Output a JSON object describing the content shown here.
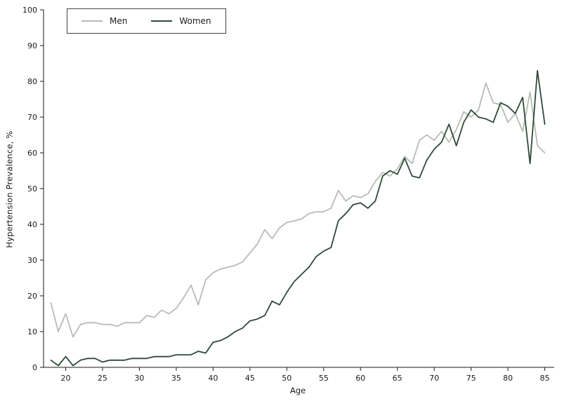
{
  "figure": {
    "xlabel": "Age",
    "ylabel": "Hypertension Prevalence, %"
  },
  "chart_data": {
    "type": "line",
    "title": "",
    "xlabel": "Age",
    "ylabel": "Hypertension Prevalence, %",
    "xlim": [
      17,
      86
    ],
    "ylim": [
      0,
      100
    ],
    "x_ticks": [
      20,
      25,
      30,
      35,
      40,
      45,
      50,
      55,
      60,
      65,
      70,
      75,
      80,
      85
    ],
    "y_ticks": [
      0,
      10,
      20,
      30,
      40,
      50,
      60,
      70,
      80,
      90,
      100
    ],
    "grid": false,
    "legend_position": "top-left",
    "x": [
      18,
      19,
      20,
      21,
      22,
      23,
      24,
      25,
      26,
      27,
      28,
      29,
      30,
      31,
      32,
      33,
      34,
      35,
      36,
      37,
      38,
      39,
      40,
      41,
      42,
      43,
      44,
      45,
      46,
      47,
      48,
      49,
      50,
      51,
      52,
      53,
      54,
      55,
      56,
      57,
      58,
      59,
      60,
      61,
      62,
      63,
      64,
      65,
      66,
      67,
      68,
      69,
      70,
      71,
      72,
      73,
      74,
      75,
      76,
      77,
      78,
      79,
      80,
      81,
      82,
      83,
      84,
      85
    ],
    "series": [
      {
        "name": "Men",
        "color": "#b6bcb6",
        "values": [
          18,
          10,
          15,
          8.5,
          12,
          12.5,
          12.5,
          12,
          12,
          11.5,
          12.5,
          12.5,
          12.5,
          14.5,
          14,
          16,
          15,
          16.5,
          19.5,
          23,
          17.5,
          24.5,
          26.5,
          27.5,
          28,
          28.5,
          29.5,
          32,
          34.5,
          38.5,
          36,
          39,
          40.5,
          41,
          41.5,
          43,
          43.5,
          43.5,
          44.5,
          49.5,
          46.5,
          48,
          47.5,
          48.5,
          52,
          54.5,
          53.5,
          55.5,
          59,
          57,
          63.5,
          65,
          63.5,
          66,
          63,
          66.5,
          71.5,
          70,
          72,
          79.5,
          74,
          73.5,
          68.5,
          71,
          66,
          77,
          62,
          60
        ]
      },
      {
        "name": "Women",
        "color": "#2e4a39",
        "values": [
          2,
          0.5,
          3,
          0.5,
          2,
          2.5,
          2.5,
          1.5,
          2,
          2,
          2,
          2.5,
          2.5,
          2.5,
          3,
          3,
          3,
          3.5,
          3.5,
          3.5,
          4.5,
          4,
          7,
          7.5,
          8.5,
          10,
          11,
          13,
          13.5,
          14.5,
          18.5,
          17.5,
          21,
          24,
          26,
          28,
          31,
          32.5,
          33.5,
          41,
          43,
          45.5,
          46,
          44.5,
          46.5,
          53.5,
          55,
          54,
          58.5,
          53.5,
          53,
          58,
          61,
          63,
          68,
          62,
          68.5,
          72,
          70,
          69.5,
          68.5,
          74,
          73,
          71,
          75.5,
          57,
          83,
          68
        ]
      }
    ]
  },
  "legend": {
    "items": [
      {
        "label": "Men"
      },
      {
        "label": "Women"
      }
    ]
  }
}
